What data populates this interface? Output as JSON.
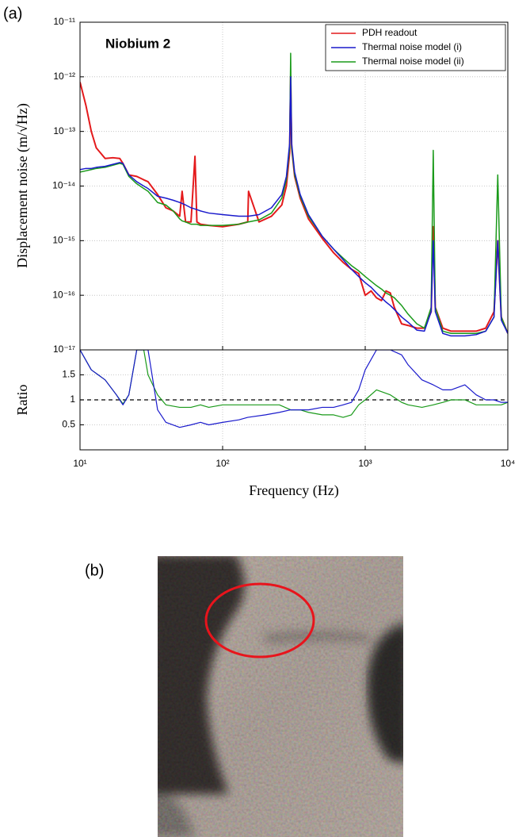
{
  "chart_data": [
    {
      "type": "line",
      "panel_label": "(a)",
      "annotation": "Niobium 2",
      "ylabel": "Displacement noise (m/√Hz)",
      "log_x": true,
      "log_y": true,
      "grid": true,
      "legend": "upper right",
      "xlim": [
        10,
        10000
      ],
      "ylim": [
        1e-17,
        1e-11
      ],
      "yticks": [
        {
          "value": 1e-17,
          "label": "10⁻¹⁷"
        },
        {
          "value": 1e-16,
          "label": "10⁻¹⁶"
        },
        {
          "value": 1e-15,
          "label": "10⁻¹⁵"
        },
        {
          "value": 1e-14,
          "label": "10⁻¹⁴"
        },
        {
          "value": 1e-13,
          "label": "10⁻¹³"
        },
        {
          "value": 1e-12,
          "label": "10⁻¹²"
        },
        {
          "value": 1e-11,
          "label": "10⁻¹¹"
        }
      ],
      "x": [
        10,
        11,
        12,
        13,
        15,
        17,
        19,
        20,
        22,
        25,
        28,
        30,
        35,
        40,
        45,
        50,
        52,
        55,
        60,
        64,
        66,
        70,
        80,
        100,
        130,
        150,
        152,
        180,
        220,
        260,
        280,
        295,
        300,
        305,
        320,
        350,
        400,
        500,
        600,
        700,
        800,
        900,
        1000,
        1100,
        1200,
        1300,
        1400,
        1500,
        1600,
        1800,
        2000,
        2300,
        2600,
        2900,
        3000,
        3100,
        3500,
        4000,
        5000,
        6000,
        7000,
        8000,
        8500,
        9000,
        10000
      ],
      "series": [
        {
          "name": "PDH readout",
          "color": "#e41a1c",
          "width": 2,
          "values": [
            8e-13,
            3e-13,
            1e-13,
            5e-14,
            3.2e-14,
            3.3e-14,
            3.2e-14,
            2.6e-14,
            1.6e-14,
            1.5e-14,
            1.3e-14,
            1.2e-14,
            7e-15,
            4e-15,
            3.5e-15,
            2.8e-15,
            8e-15,
            2.2e-15,
            2.2e-15,
            3.5e-14,
            2.2e-15,
            2e-15,
            1.9e-15,
            1.8e-15,
            2e-15,
            2.2e-15,
            8e-15,
            2.2e-15,
            2.8e-15,
            4.5e-15,
            1e-14,
            4e-14,
            1e-12,
            5e-14,
            1.5e-14,
            6e-15,
            2.5e-15,
            1.1e-15,
            6e-16,
            4e-16,
            3e-16,
            2.5e-16,
            1e-16,
            1.2e-16,
            9e-17,
            8e-17,
            1.2e-16,
            1.1e-16,
            6e-17,
            3e-17,
            2.8e-17,
            2.5e-17,
            2.5e-17,
            5e-17,
            1.8e-15,
            6e-17,
            2.5e-17,
            2.2e-17,
            2.2e-17,
            2.2e-17,
            2.5e-17,
            5e-17,
            1e-15,
            4e-17,
            2e-17
          ]
        },
        {
          "name": "Thermal noise model (i)",
          "color": "#1a1acc",
          "width": 1.5,
          "values": [
            2e-14,
            2.1e-14,
            2.1e-14,
            2.2e-14,
            2.3e-14,
            2.5e-14,
            2.7e-14,
            2.6e-14,
            1.6e-14,
            1.2e-14,
            1e-14,
            9e-15,
            6.5e-15,
            6e-15,
            5.5e-15,
            5e-15,
            4.8e-15,
            4.5e-15,
            4e-15,
            3.8e-15,
            3.7e-15,
            3.5e-15,
            3.2e-15,
            3e-15,
            2.8e-15,
            2.8e-15,
            2.8e-15,
            3e-15,
            4e-15,
            7e-15,
            1.5e-14,
            6e-14,
            1e-12,
            6e-14,
            1.8e-14,
            7e-15,
            3e-15,
            1.2e-15,
            7e-16,
            4.5e-16,
            3e-16,
            2.2e-16,
            1.7e-16,
            1.4e-16,
            1.1e-16,
            9e-17,
            7.5e-17,
            6.5e-17,
            5.5e-17,
            4e-17,
            3.2e-17,
            2.3e-17,
            2.2e-17,
            5e-17,
            1e-15,
            5e-17,
            2e-17,
            1.8e-17,
            1.8e-17,
            1.9e-17,
            2.2e-17,
            4e-17,
            1e-15,
            3.5e-17,
            2e-17
          ]
        },
        {
          "name": "Thermal noise model (ii)",
          "color": "#1a9a1a",
          "width": 1.5,
          "values": [
            1.8e-14,
            1.9e-14,
            2e-14,
            2.1e-14,
            2.2e-14,
            2.4e-14,
            2.6e-14,
            2.5e-14,
            1.5e-14,
            1.1e-14,
            9e-15,
            8e-15,
            5e-15,
            4.5e-15,
            3.5e-15,
            2.5e-15,
            2.3e-15,
            2.2e-15,
            2e-15,
            2e-15,
            2e-15,
            1.9e-15,
            1.9e-15,
            1.9e-15,
            2e-15,
            2.2e-15,
            2.2e-15,
            2.4e-15,
            3.2e-15,
            6e-15,
            1.3e-14,
            5e-14,
            2.7e-12,
            5e-14,
            1.6e-14,
            6.5e-15,
            2.8e-15,
            1.2e-15,
            7e-16,
            4.8e-16,
            3.5e-16,
            2.8e-16,
            2.2e-16,
            1.8e-16,
            1.5e-16,
            1.3e-16,
            1.1e-16,
            1e-16,
            9e-17,
            6.5e-17,
            4.5e-17,
            3e-17,
            2.5e-17,
            6e-17,
            4.5e-14,
            6e-17,
            2.2e-17,
            2e-17,
            2e-17,
            2e-17,
            2.2e-17,
            4e-17,
            1.6e-14,
            4e-17,
            2e-17
          ]
        }
      ]
    },
    {
      "type": "line",
      "xlabel": "Frequency (Hz)",
      "ylabel": "Ratio",
      "log_x": true,
      "grid": true,
      "reference_line": 1,
      "xlim": [
        10,
        10000
      ],
      "ylim": [
        0,
        2
      ],
      "xticks": [
        {
          "value": 10,
          "label": "10¹"
        },
        {
          "value": 100,
          "label": "10²"
        },
        {
          "value": 1000,
          "label": "10³"
        },
        {
          "value": 10000,
          "label": "10⁴"
        }
      ],
      "yticks": [
        0.5,
        1,
        1.5
      ],
      "x": [
        10,
        12,
        15,
        18,
        20,
        22,
        25,
        28,
        30,
        35,
        40,
        50,
        60,
        70,
        80,
        100,
        130,
        150,
        200,
        250,
        300,
        350,
        400,
        500,
        600,
        700,
        800,
        900,
        1000,
        1200,
        1500,
        1800,
        2000,
        2500,
        3000,
        3500,
        4000,
        5000,
        6000,
        7000,
        8000,
        9000,
        10000
      ],
      "series": [
        {
          "color": "#1a1acc",
          "values": [
            2.0,
            1.6,
            1.4,
            1.1,
            0.9,
            1.1,
            2.0,
            2.0,
            2.0,
            0.8,
            0.55,
            0.45,
            0.5,
            0.55,
            0.5,
            0.55,
            0.6,
            0.65,
            0.7,
            0.75,
            0.8,
            0.8,
            0.8,
            0.85,
            0.85,
            0.9,
            0.95,
            1.2,
            1.6,
            2.0,
            2.0,
            1.9,
            1.7,
            1.4,
            1.3,
            1.2,
            1.2,
            1.3,
            1.1,
            1.0,
            1.0,
            0.95,
            0.95
          ]
        },
        {
          "color": "#1a9a1a",
          "values": [
            2.0,
            1.6,
            1.4,
            1.1,
            0.92,
            1.1,
            2.0,
            2.0,
            1.5,
            1.1,
            0.9,
            0.85,
            0.85,
            0.9,
            0.85,
            0.9,
            0.9,
            0.9,
            0.9,
            0.9,
            0.8,
            0.8,
            0.75,
            0.7,
            0.7,
            0.65,
            0.7,
            0.9,
            1.0,
            1.2,
            1.1,
            0.95,
            0.9,
            0.85,
            0.9,
            0.95,
            1.0,
            1.0,
            0.9,
            0.9,
            0.9,
            0.9,
            0.95
          ]
        }
      ]
    }
  ],
  "photo": {
    "panel_label": "(b)"
  }
}
